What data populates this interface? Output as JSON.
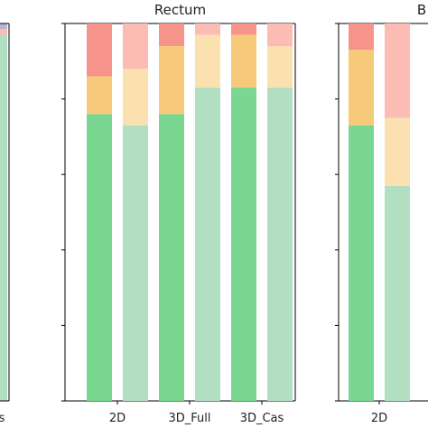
{
  "chart_data": [
    {
      "type": "bar",
      "stacked": true,
      "title": "",
      "categories": [
        "s"
      ],
      "xlim": [
        -0.62,
        0.35
      ],
      "ylim": [
        0,
        1
      ],
      "series": [
        {
          "values": [
            0.97
          ],
          "color": "#b2dfc2"
        },
        {
          "values": [
            0.0
          ],
          "color": "#fbe0b0"
        },
        {
          "values": [
            0.015
          ],
          "color": "#fcbcb4"
        },
        {
          "values": [
            0.015
          ],
          "color": "#b7b3d6"
        }
      ]
    },
    {
      "type": "bar",
      "stacked": true,
      "title": "Rectum",
      "categories": [
        "2D",
        "3D_Full",
        "3D_Cas"
      ],
      "ylim": [
        0,
        1
      ],
      "groups": [
        {
          "category": "2D",
          "bars": [
            {
              "series": [
                {
                  "value": 0.76,
                  "color": "#79d792"
                },
                {
                  "value": 0.1,
                  "color": "#f7c97a"
                },
                {
                  "value": 0.14,
                  "color": "#f6938a"
                }
              ]
            },
            {
              "series": [
                {
                  "value": 0.73,
                  "color": "#b2dfc2"
                },
                {
                  "value": 0.15,
                  "color": "#fbe0b0"
                },
                {
                  "value": 0.12,
                  "color": "#fcbcb4"
                }
              ]
            }
          ]
        },
        {
          "category": "3D_Full",
          "bars": [
            {
              "series": [
                {
                  "value": 0.76,
                  "color": "#79d792"
                },
                {
                  "value": 0.18,
                  "color": "#f7c97a"
                },
                {
                  "value": 0.06,
                  "color": "#f6938a"
                }
              ]
            },
            {
              "series": [
                {
                  "value": 0.83,
                  "color": "#b2dfc2"
                },
                {
                  "value": 0.14,
                  "color": "#fbe0b0"
                },
                {
                  "value": 0.03,
                  "color": "#fcbcb4"
                }
              ]
            }
          ]
        },
        {
          "category": "3D_Cas",
          "bars": [
            {
              "series": [
                {
                  "value": 0.83,
                  "color": "#79d792"
                },
                {
                  "value": 0.14,
                  "color": "#f7c97a"
                },
                {
                  "value": 0.03,
                  "color": "#f6938a"
                }
              ]
            },
            {
              "series": [
                {
                  "value": 0.83,
                  "color": "#b2dfc2"
                },
                {
                  "value": 0.11,
                  "color": "#fbe0b0"
                },
                {
                  "value": 0.06,
                  "color": "#fcbcb4"
                }
              ]
            }
          ]
        }
      ]
    },
    {
      "type": "bar",
      "stacked": true,
      "title": "B",
      "categories": [
        "2D"
      ],
      "ylim": [
        0,
        1
      ],
      "groups": [
        {
          "category": "2D",
          "bars": [
            {
              "series": [
                {
                  "value": 0.73,
                  "color": "#79d792"
                },
                {
                  "value": 0.2,
                  "color": "#f7c97a"
                },
                {
                  "value": 0.07,
                  "color": "#f6938a"
                }
              ]
            },
            {
              "series": [
                {
                  "value": 0.57,
                  "color": "#b2dfc2"
                },
                {
                  "value": 0.18,
                  "color": "#fbe0b0"
                },
                {
                  "value": 0.25,
                  "color": "#fcbcb4"
                }
              ]
            }
          ]
        }
      ]
    }
  ]
}
